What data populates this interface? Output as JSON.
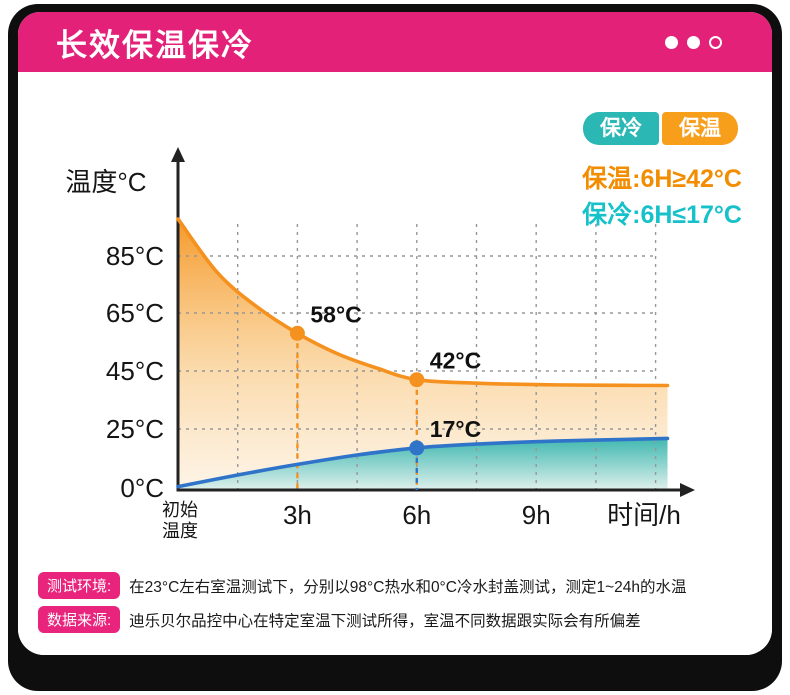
{
  "header": {
    "title": "长效保温保冷",
    "pagination_dots": {
      "filled": 2,
      "total": 3
    }
  },
  "legend": {
    "cold_label": "保冷",
    "hot_label": "保温"
  },
  "callouts": {
    "hot": "保温:6H≥42°C",
    "cold": "保冷:6H≤17°C"
  },
  "colors": {
    "brand_pink": "#e32179",
    "hot_orange": "#f5911e",
    "legend_orange": "#f79e1b",
    "legend_teal": "#2bb7b3",
    "cold_blue": "#2f74c9",
    "callout_cyan": "#16c1c9",
    "frame_black": "#0e0e0e"
  },
  "chart_data": {
    "type": "line",
    "title": "长效保温保冷",
    "ylabel": "温度°C",
    "xlabel": "时间/h",
    "grid": "dashed",
    "legend_position": "top-right",
    "ylim": [
      0,
      100
    ],
    "xlim": [
      0,
      12.8
    ],
    "y_ticks": [
      {
        "value": 85,
        "label": "85°C"
      },
      {
        "value": 65,
        "label": "65°C"
      },
      {
        "value": 45,
        "label": "45°C"
      },
      {
        "value": 25,
        "label": "25°C"
      },
      {
        "value": 0,
        "label": "0°C"
      }
    ],
    "x_ticks": [
      {
        "t": 0,
        "lines": [
          "初始",
          "温度"
        ]
      },
      {
        "t": 3,
        "label": "3h"
      },
      {
        "t": 6,
        "label": "6h"
      },
      {
        "t": 9,
        "label": "9h"
      }
    ],
    "series": [
      {
        "name": "保温",
        "color": "#f5911e",
        "summary": "保温:6H≥42°C",
        "points": [
          [
            0,
            98
          ],
          [
            1,
            79
          ],
          [
            2,
            67
          ],
          [
            3,
            58
          ],
          [
            4,
            51
          ],
          [
            5,
            46
          ],
          [
            6,
            42
          ],
          [
            7.5,
            40.8
          ],
          [
            9,
            40.3
          ],
          [
            10.5,
            40.1
          ],
          [
            12.3,
            40
          ]
        ],
        "markers": [
          {
            "x": 3,
            "y": 58,
            "label": "58°C"
          },
          {
            "x": 6,
            "y": 42,
            "label": "42°C"
          }
        ]
      },
      {
        "name": "保冷",
        "color": "#2f74c9",
        "summary": "保冷:6H≤17°C",
        "points": [
          [
            0,
            0.6
          ],
          [
            1.5,
            5.5
          ],
          [
            3,
            10
          ],
          [
            4.5,
            14
          ],
          [
            6,
            17
          ],
          [
            7.5,
            18.6
          ],
          [
            9,
            19.6
          ],
          [
            10.5,
            20.3
          ],
          [
            12.3,
            21
          ]
        ],
        "markers": [
          {
            "x": 6,
            "y": 17,
            "label": "17°C"
          }
        ]
      }
    ]
  },
  "notes": [
    {
      "badge": "测试环境:",
      "text": "在23°C左右室温测试下，分别以98°C热水和0°C冷水封盖测试，测定1~24h的水温"
    },
    {
      "badge": "数据来源:",
      "text": "迪乐贝尔品控中心在特定室温下测试所得，室温不同数据跟实际会有所偏差"
    }
  ]
}
